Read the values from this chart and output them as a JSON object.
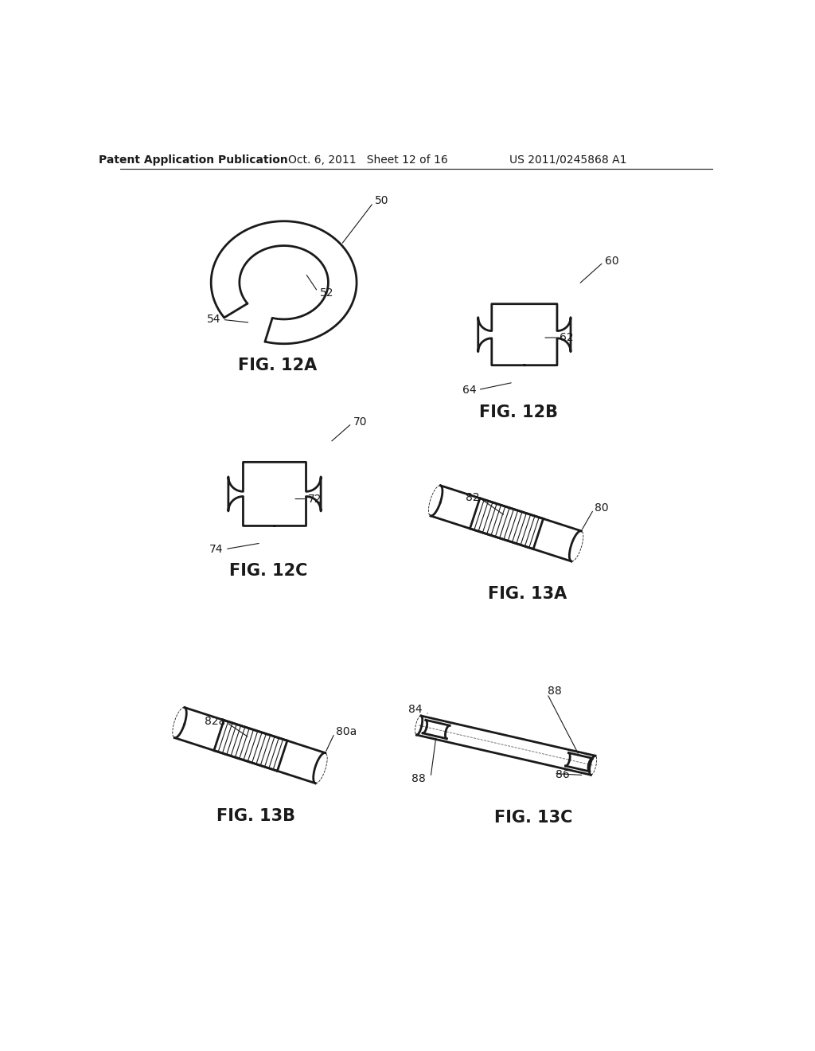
{
  "bg_color": "#ffffff",
  "header_left": "Patent Application Publication",
  "header_mid": "Oct. 6, 2011   Sheet 12 of 16",
  "header_right": "US 2011/0245868 A1",
  "fig12a_label": "FIG. 12A",
  "fig12b_label": "FIG. 12B",
  "fig12c_label": "FIG. 12C",
  "fig13a_label": "FIG. 13A",
  "fig13b_label": "FIG. 13B",
  "fig13c_label": "FIG. 13C",
  "line_color": "#1a1a1a",
  "line_width": 2.0,
  "annotation_fontsize": 10,
  "label_fontsize": 15,
  "header_fontsize": 10
}
